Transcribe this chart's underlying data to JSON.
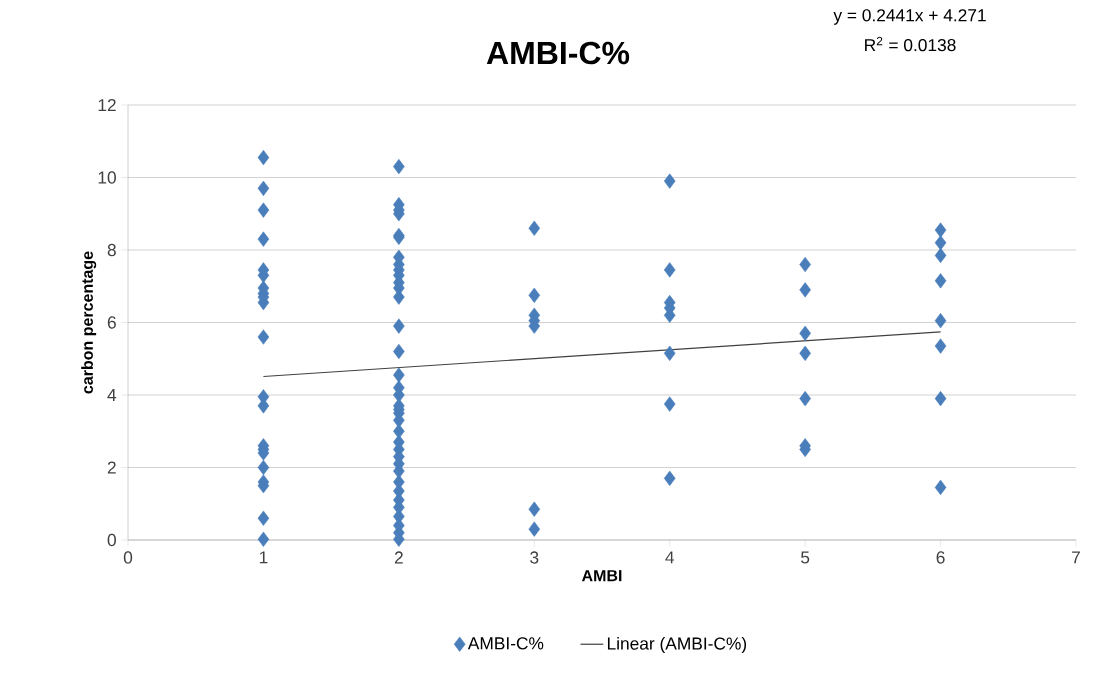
{
  "chart_data": {
    "type": "scatter",
    "title": "AMBI-C%",
    "xlabel": "AMBI",
    "ylabel": "carbon percentage",
    "annotations": [
      "y = 0.2441x + 4.271",
      "R$^{2}$ = 0.0138"
    ],
    "series": [
      {
        "name": "AMBI-C%",
        "color": "#4a7ebb",
        "x": [
          1,
          1,
          1,
          1,
          1,
          1,
          1,
          1,
          1,
          1,
          1,
          1,
          1,
          1,
          1,
          1,
          1,
          1,
          1,
          1,
          1,
          2,
          2,
          2,
          2,
          2,
          2,
          2,
          2,
          2,
          2,
          2,
          2,
          2,
          2,
          2,
          2,
          2,
          2,
          2,
          2,
          2,
          2,
          2,
          2,
          2,
          2,
          2,
          2,
          2,
          2,
          2,
          2,
          2,
          2,
          2,
          2,
          3,
          3,
          3,
          3,
          3,
          3,
          3,
          4,
          4,
          4,
          4,
          4,
          4,
          4,
          4,
          5,
          5,
          5,
          5,
          5,
          5,
          5,
          6,
          6,
          6,
          6,
          6,
          6,
          6,
          6
        ],
        "values": [
          10.55,
          9.7,
          9.1,
          8.3,
          7.45,
          7.3,
          6.95,
          6.8,
          6.7,
          6.55,
          5.6,
          3.95,
          3.7,
          2.6,
          2.5,
          2.4,
          2.0,
          1.6,
          1.5,
          0.6,
          0.02,
          10.3,
          9.25,
          9.1,
          9.0,
          8.4,
          8.35,
          7.8,
          7.6,
          7.45,
          7.3,
          7.1,
          6.95,
          6.7,
          5.9,
          5.2,
          4.55,
          4.2,
          4.0,
          3.7,
          3.6,
          3.5,
          3.3,
          3.0,
          2.7,
          2.5,
          2.3,
          2.1,
          1.9,
          1.6,
          1.35,
          1.1,
          0.9,
          0.65,
          0.4,
          0.2,
          0.02,
          8.6,
          6.75,
          6.2,
          6.05,
          5.9,
          0.85,
          0.3,
          9.9,
          7.45,
          6.55,
          6.4,
          6.2,
          5.15,
          3.75,
          1.7,
          7.6,
          6.9,
          5.7,
          5.15,
          3.9,
          2.6,
          2.5,
          8.55,
          8.2,
          7.85,
          7.15,
          6.05,
          5.35,
          3.9,
          1.45
        ]
      },
      {
        "name": "Linear (AMBI-C%)",
        "type": "line",
        "marker": "none",
        "color": "#404040",
        "x": [
          1,
          6
        ],
        "values": [
          4.51,
          5.74
        ]
      }
    ],
    "xlim": [
      0,
      7
    ],
    "xticks": [
      0,
      1,
      2,
      3,
      4,
      5,
      6,
      7
    ],
    "ylim": [
      0,
      12
    ],
    "yticks": [
      0,
      2,
      4,
      6,
      8,
      10,
      12
    ],
    "grid": "y",
    "legend": "bottom",
    "marker": "diamond"
  }
}
